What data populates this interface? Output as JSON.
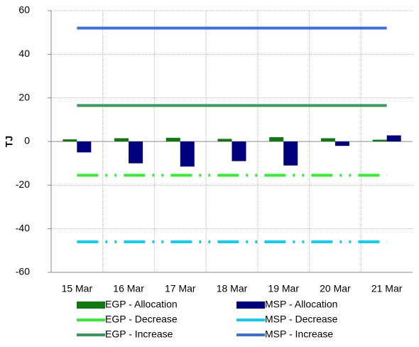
{
  "chart_data": {
    "type": "combo",
    "y_label": "TJ",
    "categories": [
      "15 Mar",
      "16 Mar",
      "17 Mar",
      "18 Mar",
      "19 Mar",
      "20 Mar",
      "21 Mar"
    ],
    "ylim": [
      -60,
      60
    ],
    "yticks": [
      -60,
      -40,
      -20,
      0,
      20,
      40,
      60
    ],
    "grid": true,
    "series": [
      {
        "name": "EGP - Allocation",
        "type": "bar",
        "color": "#11780f",
        "values": [
          1,
          1.5,
          1.7,
          1.2,
          2,
          1.5,
          0.8
        ]
      },
      {
        "name": "MSP - Allocation",
        "type": "bar",
        "color": "#00007f",
        "values": [
          -5,
          -10,
          -11.5,
          -9,
          -11,
          -2,
          2.8
        ]
      },
      {
        "name": "EGP - Decrease",
        "type": "line",
        "dashed": true,
        "color": "#33ee33",
        "values": [
          -15.5,
          -15.5,
          -15.5,
          -15.5,
          -15.5,
          -15.5,
          -15.5
        ]
      },
      {
        "name": "MSP - Decrease",
        "type": "line",
        "dashed": true,
        "color": "#11ccf0",
        "values": [
          -46,
          -46,
          -46,
          -46,
          -46,
          -46,
          -46
        ]
      },
      {
        "name": "EGP - Increase",
        "type": "line",
        "dashed": false,
        "color": "#3a9a5c",
        "values": [
          16.5,
          16.5,
          16.5,
          16.5,
          16.5,
          16.5,
          16.5
        ]
      },
      {
        "name": "MSP - Increase",
        "type": "line",
        "dashed": false,
        "color": "#3a6ee6",
        "values": [
          52,
          52,
          52,
          52,
          52,
          52,
          52
        ]
      }
    ]
  }
}
